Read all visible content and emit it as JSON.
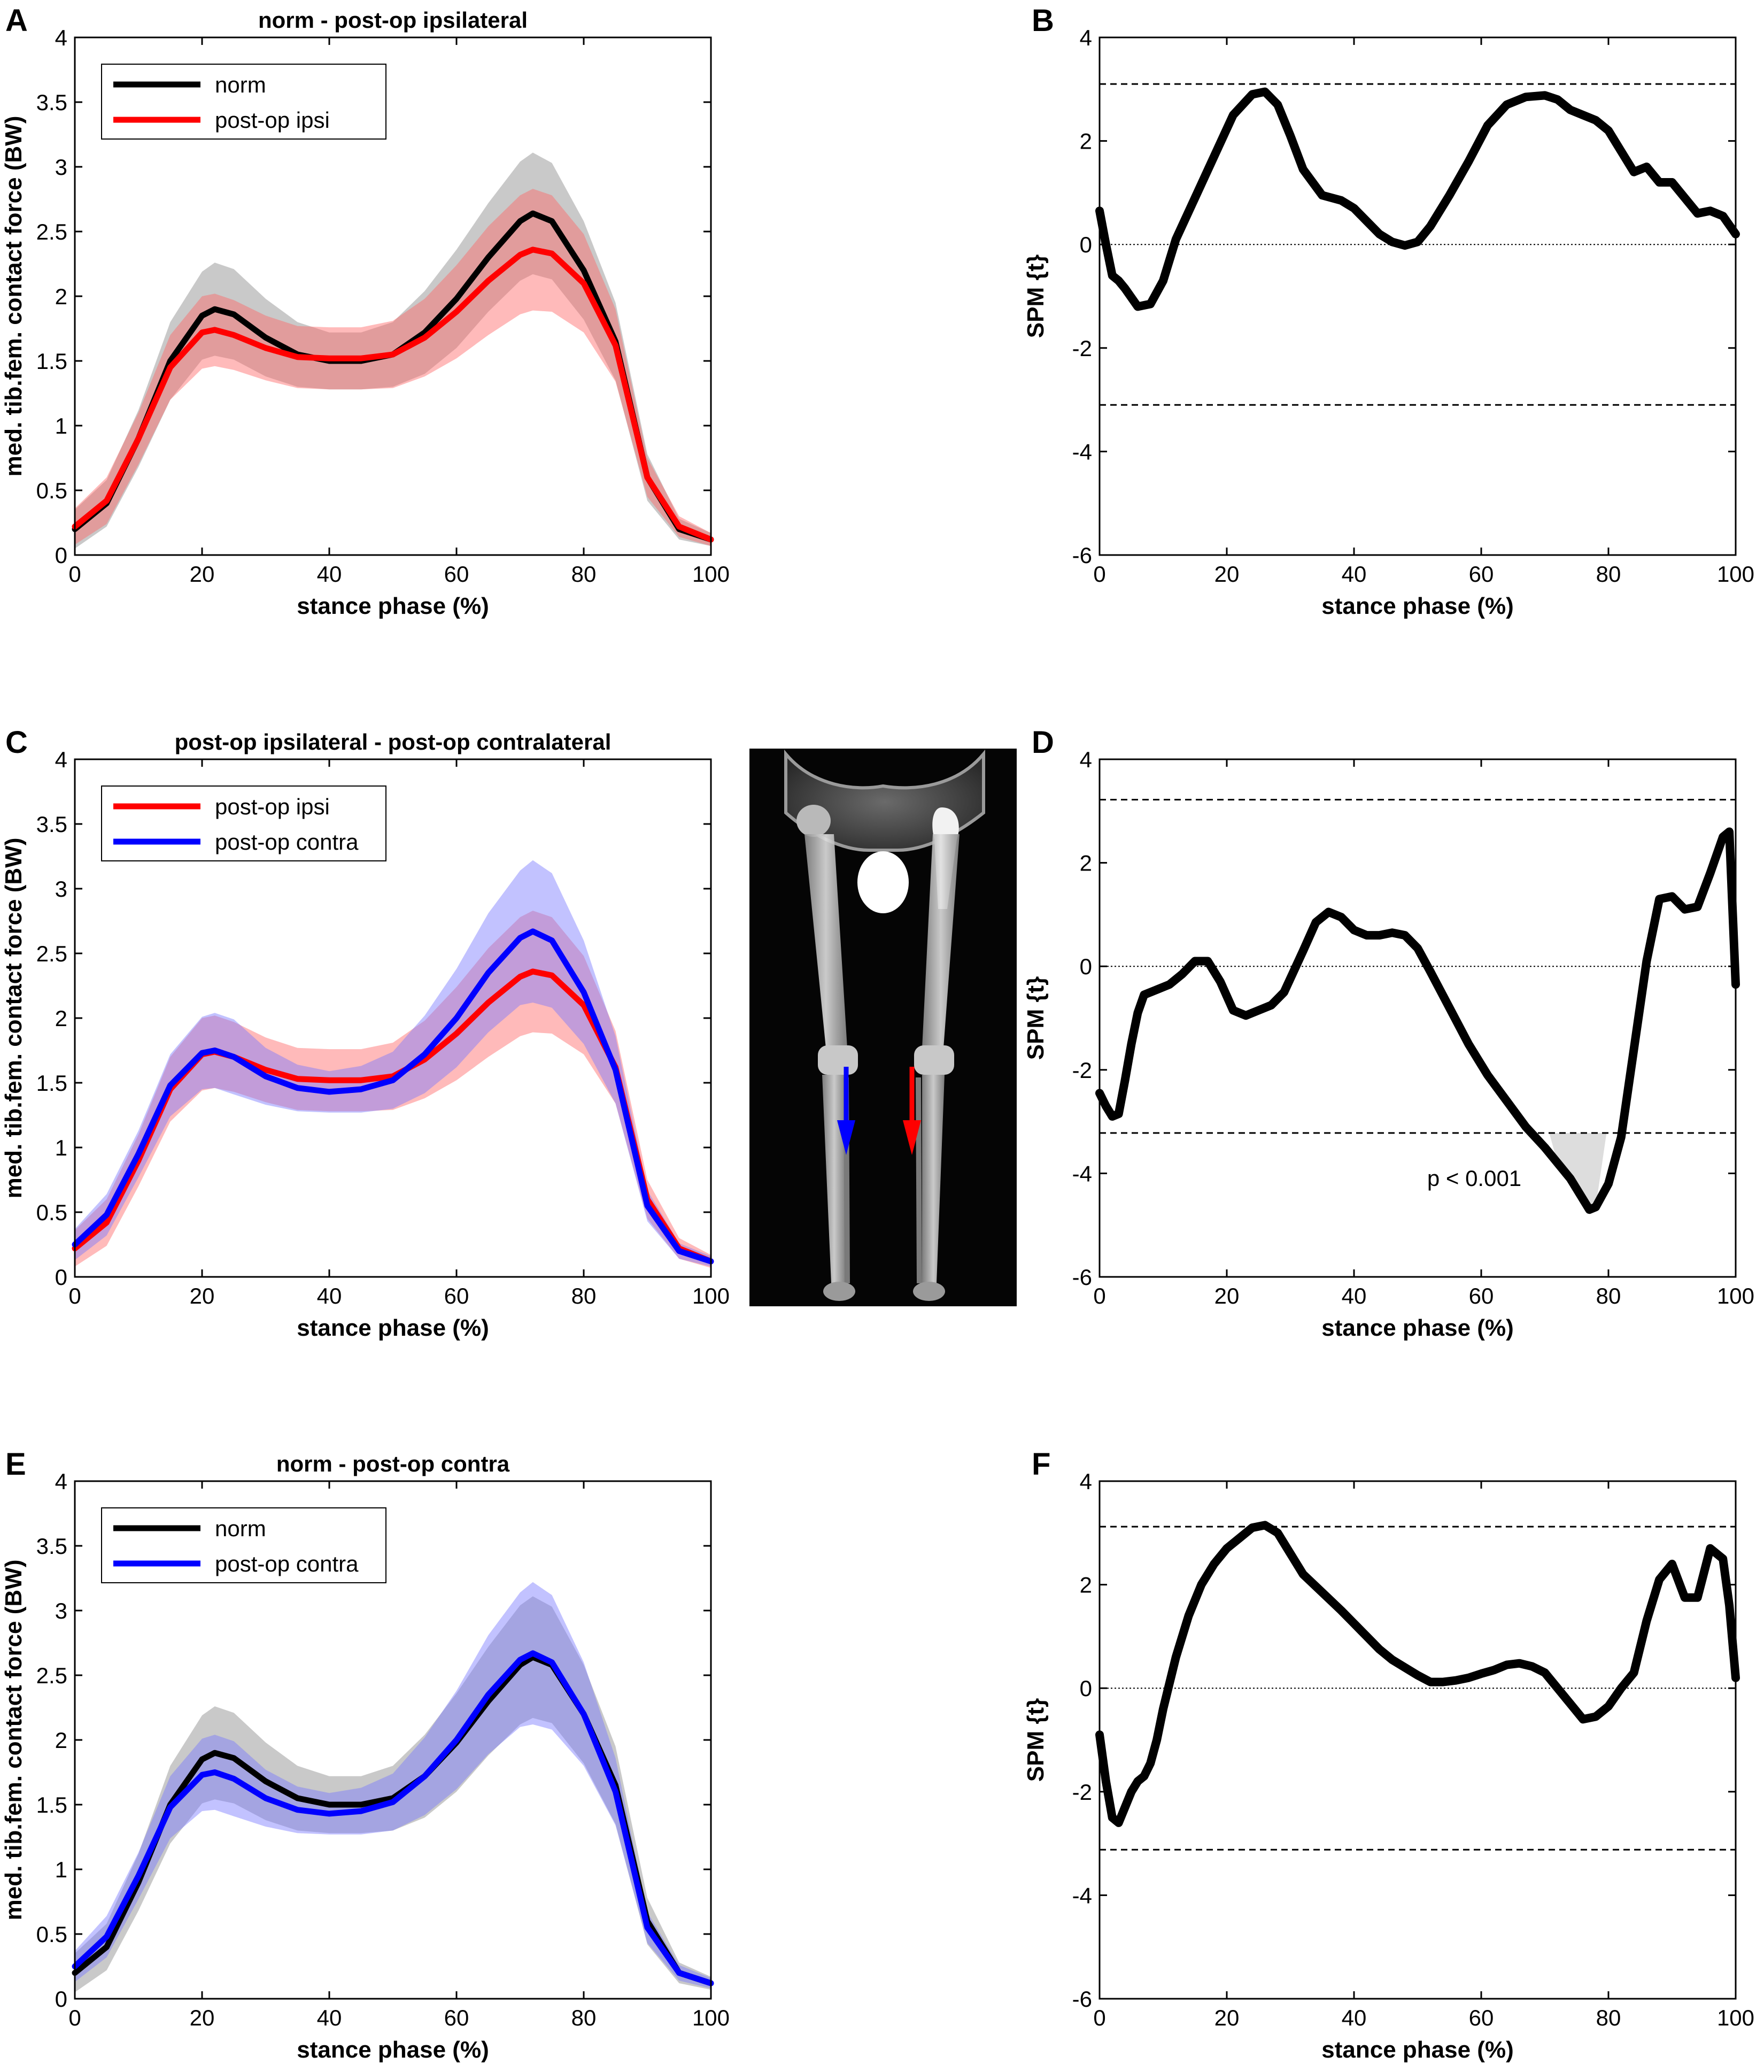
{
  "colors": {
    "norm": "#000000",
    "ipsi": "#ff0000",
    "contra": "#0000ff",
    "band_norm": "#888888",
    "band_ipsi": "#ff6666",
    "band_contra": "#7777ff",
    "spm": "#000000",
    "sig_fill": "#dddddd"
  },
  "chart_data": [
    {
      "panel": "A",
      "type": "line",
      "title": "norm - post-op ipsilateral",
      "xlabel": "stance phase (%)",
      "ylabel": "med. tib.fem. contact force (BW)",
      "xlim": [
        0,
        100
      ],
      "ylim": [
        0,
        4
      ],
      "xticks": [
        0,
        20,
        40,
        60,
        80,
        100
      ],
      "yticks": [
        0,
        0.5,
        1,
        1.5,
        2,
        2.5,
        3,
        3.5,
        4
      ],
      "ytick_labels": [
        "0",
        "0.5",
        "1",
        "1.5",
        "2",
        "2.5",
        "3",
        "3.5",
        "4"
      ],
      "legend": [
        "norm",
        "post-op ipsi"
      ],
      "legend_position": "top-left",
      "x": [
        0,
        5,
        10,
        15,
        20,
        22,
        25,
        30,
        35,
        40,
        45,
        50,
        55,
        60,
        65,
        70,
        72,
        75,
        80,
        85,
        90,
        95,
        100
      ],
      "series": [
        {
          "name": "norm",
          "color": "norm",
          "values": [
            0.2,
            0.4,
            0.9,
            1.5,
            1.85,
            1.9,
            1.86,
            1.68,
            1.55,
            1.5,
            1.5,
            1.55,
            1.72,
            1.98,
            2.3,
            2.58,
            2.64,
            2.58,
            2.2,
            1.65,
            0.6,
            0.2,
            0.12
          ],
          "sd": [
            0.15,
            0.18,
            0.22,
            0.3,
            0.34,
            0.36,
            0.35,
            0.3,
            0.25,
            0.22,
            0.22,
            0.25,
            0.32,
            0.38,
            0.42,
            0.46,
            0.47,
            0.45,
            0.38,
            0.3,
            0.18,
            0.08,
            0.05
          ]
        },
        {
          "name": "post-op ipsi",
          "color": "ipsi",
          "values": [
            0.22,
            0.42,
            0.9,
            1.45,
            1.72,
            1.74,
            1.7,
            1.6,
            1.53,
            1.52,
            1.52,
            1.55,
            1.68,
            1.88,
            2.12,
            2.32,
            2.36,
            2.33,
            2.1,
            1.62,
            0.6,
            0.22,
            0.12
          ],
          "sd": [
            0.14,
            0.18,
            0.2,
            0.25,
            0.28,
            0.28,
            0.27,
            0.25,
            0.24,
            0.24,
            0.24,
            0.26,
            0.3,
            0.36,
            0.42,
            0.46,
            0.47,
            0.45,
            0.38,
            0.28,
            0.15,
            0.08,
            0.05
          ]
        }
      ]
    },
    {
      "panel": "B",
      "type": "line",
      "xlabel": "stance phase (%)",
      "ylabel": "SPM {t}",
      "xlim": [
        0,
        100
      ],
      "ylim": [
        -6,
        4
      ],
      "xticks": [
        0,
        20,
        40,
        60,
        80,
        100
      ],
      "yticks": [
        -6,
        -4,
        -2,
        0,
        2,
        4
      ],
      "ytick_labels": [
        "-6",
        "-4",
        "-2",
        "0",
        "2",
        "4"
      ],
      "threshold": 3.1,
      "x": [
        0,
        1,
        2,
        3,
        4,
        6,
        8,
        10,
        12,
        15,
        18,
        21,
        24,
        26,
        28,
        30,
        32,
        35,
        38,
        40,
        42,
        44,
        46,
        48,
        50,
        52,
        55,
        58,
        61,
        64,
        67,
        70,
        72,
        74,
        76,
        78,
        80,
        82,
        84,
        86,
        88,
        90,
        92,
        94,
        96,
        98,
        100
      ],
      "series": [
        {
          "name": "SPM{t}",
          "color": "spm",
          "values": [
            0.65,
            0.0,
            -0.6,
            -0.7,
            -0.85,
            -1.2,
            -1.15,
            -0.7,
            0.1,
            0.9,
            1.7,
            2.5,
            2.9,
            2.95,
            2.7,
            2.1,
            1.45,
            0.95,
            0.85,
            0.7,
            0.45,
            0.2,
            0.05,
            -0.02,
            0.05,
            0.35,
            0.95,
            1.6,
            2.3,
            2.7,
            2.85,
            2.88,
            2.8,
            2.6,
            2.5,
            2.4,
            2.2,
            1.8,
            1.4,
            1.5,
            1.2,
            1.2,
            0.9,
            0.6,
            0.65,
            0.55,
            0.2
          ]
        }
      ]
    },
    {
      "panel": "C",
      "type": "line",
      "title": "post-op ipsilateral - post-op contralateral",
      "xlabel": "stance phase (%)",
      "ylabel": "med. tib.fem. contact force (BW)",
      "xlim": [
        0,
        100
      ],
      "ylim": [
        0,
        4
      ],
      "xticks": [
        0,
        20,
        40,
        60,
        80,
        100
      ],
      "yticks": [
        0,
        0.5,
        1,
        1.5,
        2,
        2.5,
        3,
        3.5,
        4
      ],
      "ytick_labels": [
        "0",
        "0.5",
        "1",
        "1.5",
        "2",
        "2.5",
        "3",
        "3.5",
        "4"
      ],
      "legend": [
        "post-op ipsi",
        "post-op contra"
      ],
      "legend_position": "top-left",
      "x": [
        0,
        5,
        10,
        15,
        20,
        22,
        25,
        30,
        35,
        40,
        45,
        50,
        55,
        60,
        65,
        70,
        72,
        75,
        80,
        85,
        90,
        95,
        100
      ],
      "series": [
        {
          "name": "post-op ipsi",
          "color": "ipsi",
          "values": [
            0.22,
            0.42,
            0.9,
            1.45,
            1.72,
            1.74,
            1.7,
            1.6,
            1.53,
            1.52,
            1.52,
            1.55,
            1.68,
            1.88,
            2.12,
            2.32,
            2.36,
            2.33,
            2.1,
            1.62,
            0.6,
            0.22,
            0.12
          ],
          "sd": [
            0.14,
            0.18,
            0.2,
            0.25,
            0.28,
            0.28,
            0.27,
            0.25,
            0.24,
            0.24,
            0.24,
            0.26,
            0.3,
            0.36,
            0.42,
            0.46,
            0.47,
            0.45,
            0.38,
            0.28,
            0.15,
            0.08,
            0.05
          ]
        },
        {
          "name": "post-op contra",
          "color": "contra",
          "values": [
            0.25,
            0.48,
            0.95,
            1.48,
            1.73,
            1.75,
            1.7,
            1.55,
            1.46,
            1.43,
            1.45,
            1.52,
            1.72,
            2.0,
            2.35,
            2.62,
            2.67,
            2.6,
            2.2,
            1.6,
            0.55,
            0.2,
            0.12
          ],
          "sd": [
            0.12,
            0.16,
            0.18,
            0.24,
            0.28,
            0.29,
            0.29,
            0.22,
            0.18,
            0.16,
            0.18,
            0.22,
            0.3,
            0.38,
            0.46,
            0.52,
            0.55,
            0.52,
            0.4,
            0.26,
            0.12,
            0.06,
            0.04
          ]
        }
      ]
    },
    {
      "panel": "D",
      "type": "line",
      "xlabel": "stance phase (%)",
      "ylabel": "SPM {t}",
      "xlim": [
        0,
        100
      ],
      "ylim": [
        -6,
        4
      ],
      "xticks": [
        0,
        20,
        40,
        60,
        80,
        100
      ],
      "yticks": [
        -6,
        -4,
        -2,
        0,
        2,
        4
      ],
      "ytick_labels": [
        "-6",
        "-4",
        "-2",
        "0",
        "2",
        "4"
      ],
      "threshold": 3.22,
      "annotation": "p < 0.001",
      "significant_range": [
        70.7,
        79.7
      ],
      "x": [
        0,
        1,
        2,
        3,
        4,
        5,
        6,
        7,
        9,
        11,
        13,
        15,
        17,
        19,
        21,
        23,
        25,
        27,
        29,
        32,
        34,
        36,
        38,
        40,
        42,
        44,
        46,
        48,
        50,
        52,
        55,
        58,
        61,
        64,
        67,
        70,
        72,
        74,
        76,
        77,
        78,
        80,
        82,
        84,
        86,
        88,
        90,
        92,
        94,
        96,
        98,
        99,
        100
      ],
      "series": [
        {
          "name": "SPM{t}",
          "color": "spm",
          "values": [
            -2.45,
            -2.7,
            -2.9,
            -2.85,
            -2.2,
            -1.5,
            -0.9,
            -0.55,
            -0.45,
            -0.35,
            -0.15,
            0.1,
            0.1,
            -0.3,
            -0.85,
            -0.95,
            -0.85,
            -0.75,
            -0.5,
            0.3,
            0.85,
            1.05,
            0.95,
            0.7,
            0.6,
            0.6,
            0.65,
            0.6,
            0.35,
            -0.1,
            -0.8,
            -1.5,
            -2.1,
            -2.6,
            -3.1,
            -3.5,
            -3.8,
            -4.1,
            -4.5,
            -4.7,
            -4.65,
            -4.2,
            -3.3,
            -1.6,
            0.1,
            1.3,
            1.35,
            1.1,
            1.15,
            1.8,
            2.5,
            2.6,
            -0.35
          ]
        }
      ]
    },
    {
      "panel": "E",
      "type": "line",
      "title": "norm - post-op contra",
      "xlabel": "stance phase (%)",
      "ylabel": "med. tib.fem. contact force (BW)",
      "xlim": [
        0,
        100
      ],
      "ylim": [
        0,
        4
      ],
      "xticks": [
        0,
        20,
        40,
        60,
        80,
        100
      ],
      "yticks": [
        0,
        0.5,
        1,
        1.5,
        2,
        2.5,
        3,
        3.5,
        4
      ],
      "ytick_labels": [
        "0",
        "0.5",
        "1",
        "1.5",
        "2",
        "2.5",
        "3",
        "3.5",
        "4"
      ],
      "legend": [
        "norm",
        "post-op contra"
      ],
      "legend_position": "top-left",
      "x": [
        0,
        5,
        10,
        15,
        20,
        22,
        25,
        30,
        35,
        40,
        45,
        50,
        55,
        60,
        65,
        70,
        72,
        75,
        80,
        85,
        90,
        95,
        100
      ],
      "series": [
        {
          "name": "norm",
          "color": "norm",
          "values": [
            0.2,
            0.4,
            0.9,
            1.5,
            1.85,
            1.9,
            1.86,
            1.68,
            1.55,
            1.5,
            1.5,
            1.55,
            1.72,
            1.98,
            2.3,
            2.58,
            2.64,
            2.58,
            2.2,
            1.65,
            0.6,
            0.2,
            0.12
          ],
          "sd": [
            0.15,
            0.18,
            0.22,
            0.3,
            0.34,
            0.36,
            0.35,
            0.3,
            0.25,
            0.22,
            0.22,
            0.25,
            0.32,
            0.38,
            0.42,
            0.46,
            0.47,
            0.45,
            0.38,
            0.3,
            0.18,
            0.08,
            0.05
          ]
        },
        {
          "name": "post-op contra",
          "color": "contra",
          "values": [
            0.25,
            0.48,
            0.95,
            1.48,
            1.73,
            1.75,
            1.7,
            1.55,
            1.46,
            1.43,
            1.45,
            1.52,
            1.72,
            2.0,
            2.35,
            2.62,
            2.67,
            2.6,
            2.2,
            1.6,
            0.55,
            0.2,
            0.12
          ],
          "sd": [
            0.12,
            0.16,
            0.18,
            0.24,
            0.28,
            0.29,
            0.29,
            0.22,
            0.18,
            0.16,
            0.18,
            0.22,
            0.3,
            0.38,
            0.46,
            0.52,
            0.55,
            0.52,
            0.4,
            0.26,
            0.12,
            0.06,
            0.04
          ]
        }
      ]
    },
    {
      "panel": "F",
      "type": "line",
      "xlabel": "stance phase (%)",
      "ylabel": "SPM {t}",
      "xlim": [
        0,
        100
      ],
      "ylim": [
        -6,
        4
      ],
      "xticks": [
        0,
        20,
        40,
        60,
        80,
        100
      ],
      "yticks": [
        -6,
        -4,
        -2,
        0,
        2,
        4
      ],
      "ytick_labels": [
        "-6",
        "-4",
        "-2",
        "0",
        "2",
        "4"
      ],
      "threshold": 3.12,
      "x": [
        0,
        1,
        2,
        3,
        4,
        5,
        6,
        7,
        8,
        9,
        10,
        12,
        14,
        16,
        18,
        20,
        22,
        24,
        26,
        28,
        30,
        32,
        35,
        38,
        40,
        42,
        44,
        46,
        48,
        50,
        52,
        54,
        56,
        58,
        60,
        62,
        64,
        66,
        68,
        70,
        72,
        74,
        76,
        78,
        80,
        82,
        84,
        86,
        88,
        90,
        92,
        94,
        96,
        98,
        99,
        100
      ],
      "series": [
        {
          "name": "SPM{t}",
          "color": "spm",
          "values": [
            -0.9,
            -1.8,
            -2.5,
            -2.6,
            -2.3,
            -2.0,
            -1.8,
            -1.7,
            -1.45,
            -1.0,
            -0.4,
            0.6,
            1.4,
            2.0,
            2.4,
            2.7,
            2.9,
            3.1,
            3.15,
            3.0,
            2.6,
            2.2,
            1.85,
            1.5,
            1.25,
            1.0,
            0.75,
            0.55,
            0.4,
            0.25,
            0.12,
            0.12,
            0.15,
            0.2,
            0.28,
            0.35,
            0.45,
            0.48,
            0.42,
            0.3,
            0.0,
            -0.3,
            -0.6,
            -0.55,
            -0.35,
            0.0,
            0.3,
            1.3,
            2.1,
            2.4,
            1.75,
            1.75,
            2.7,
            2.5,
            1.6,
            0.2
          ]
        }
      ]
    }
  ],
  "figure_labels": {
    "A": "A",
    "B": "B",
    "C": "C",
    "D": "D",
    "E": "E",
    "F": "F"
  }
}
